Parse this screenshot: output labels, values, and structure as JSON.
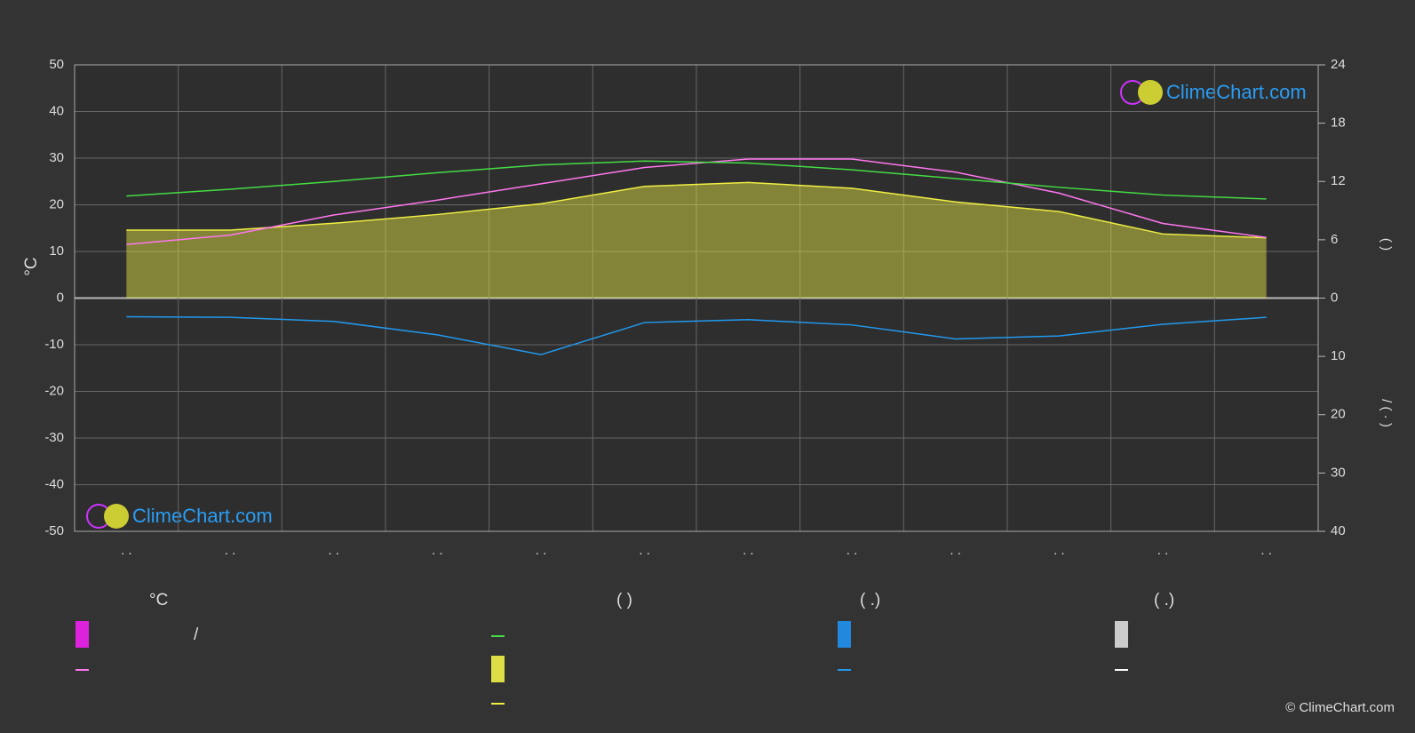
{
  "chart_data": {
    "type": "line",
    "ylabel": "°C",
    "y2label": "(        )",
    "y3label": "/    ( · )",
    "categories": [
      ". .",
      ". .",
      ". .",
      ". .",
      ". .",
      ". .",
      ". .",
      ". .",
      ". .",
      ". .",
      ". .",
      ". ."
    ],
    "ylim": [
      -50,
      50
    ],
    "yticks": [
      50,
      40,
      30,
      20,
      10,
      0,
      -10,
      -20,
      -30,
      -40,
      -50
    ],
    "y2lim": [
      -24,
      24
    ],
    "y2ticks": [
      24,
      18,
      12,
      6,
      0
    ],
    "y3lim": [
      40,
      -40
    ],
    "y3ticks": [
      10,
      20,
      30,
      40
    ],
    "grid": true,
    "series": [
      {
        "color": "#eeee44",
        "axis": "y2",
        "fill": true,
        "values": [
          7.0,
          7.0,
          7.7,
          8.6,
          9.7,
          11.5,
          11.9,
          11.3,
          9.9,
          8.9,
          6.6,
          6.2
        ]
      },
      {
        "color": "#ff77ee",
        "axis": "y",
        "values": [
          11.5,
          13.5,
          17.8,
          21,
          24.5,
          28,
          29.8,
          29.8,
          27,
          22.5,
          16,
          13
        ]
      },
      {
        "color": "#44dd44",
        "axis": "y2",
        "values": [
          10.5,
          11.2,
          12,
          12.9,
          13.7,
          14.1,
          13.9,
          13.2,
          12.3,
          11.4,
          10.6,
          10.2
        ]
      },
      {
        "color": "#2299ee",
        "axis": "y3",
        "values": [
          3.2,
          3.3,
          4,
          6.3,
          9.7,
          4.2,
          3.7,
          4.6,
          7,
          6.5,
          4.5,
          3.3
        ]
      }
    ],
    "legend_titles": [
      "°C",
      "(          )",
      "(   .)",
      "(   .)"
    ],
    "legend_note": "/",
    "logo": "ClimeChart.com",
    "copyright": "© ClimeChart.com"
  }
}
